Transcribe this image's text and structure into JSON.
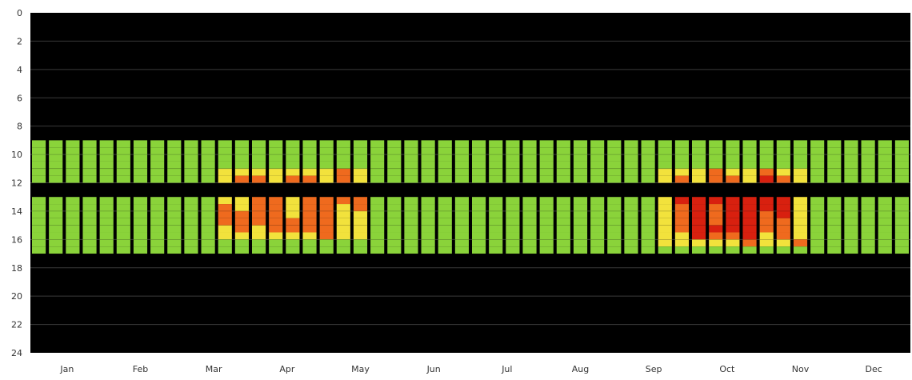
{
  "chart_data": {
    "type": "heatmap",
    "title": "",
    "xlabel": "",
    "ylabel": "",
    "x_tick_labels": [
      "Jan",
      "Feb",
      "Mar",
      "Apr",
      "May",
      "Jun",
      "Jul",
      "Aug",
      "Sep",
      "Oct",
      "Nov",
      "Dec"
    ],
    "y_tick_labels": [
      "0",
      "2",
      "4",
      "6",
      "8",
      "10",
      "12",
      "14",
      "16",
      "18",
      "20",
      "22",
      "24"
    ],
    "ylim": [
      24,
      0
    ],
    "weeks": 52,
    "occupied_blocks": [
      {
        "start_hour": 9,
        "end_hour": 12
      },
      {
        "start_hour": 13,
        "end_hour": 17
      }
    ],
    "levels": [
      {
        "name": "low",
        "color": "#8ad33a"
      },
      {
        "name": "medium",
        "color": "#f2e23c"
      },
      {
        "name": "high",
        "color": "#ef6a1e"
      },
      {
        "name": "very-high",
        "color": "#d8200f"
      }
    ],
    "high_periods": [
      {
        "month_start": 2.6,
        "month_end": 4.5,
        "hour_start": 11,
        "hour_end": 16,
        "peak": "high"
      },
      {
        "month_start": 8.6,
        "month_end": 10.5,
        "hour_start": 11,
        "hour_end": 16.5,
        "peak": "very-high"
      }
    ],
    "colors": {
      "background": "#000000",
      "gridline": "#3a3a3a",
      "cell_edge": "#000000"
    },
    "grid": true
  }
}
